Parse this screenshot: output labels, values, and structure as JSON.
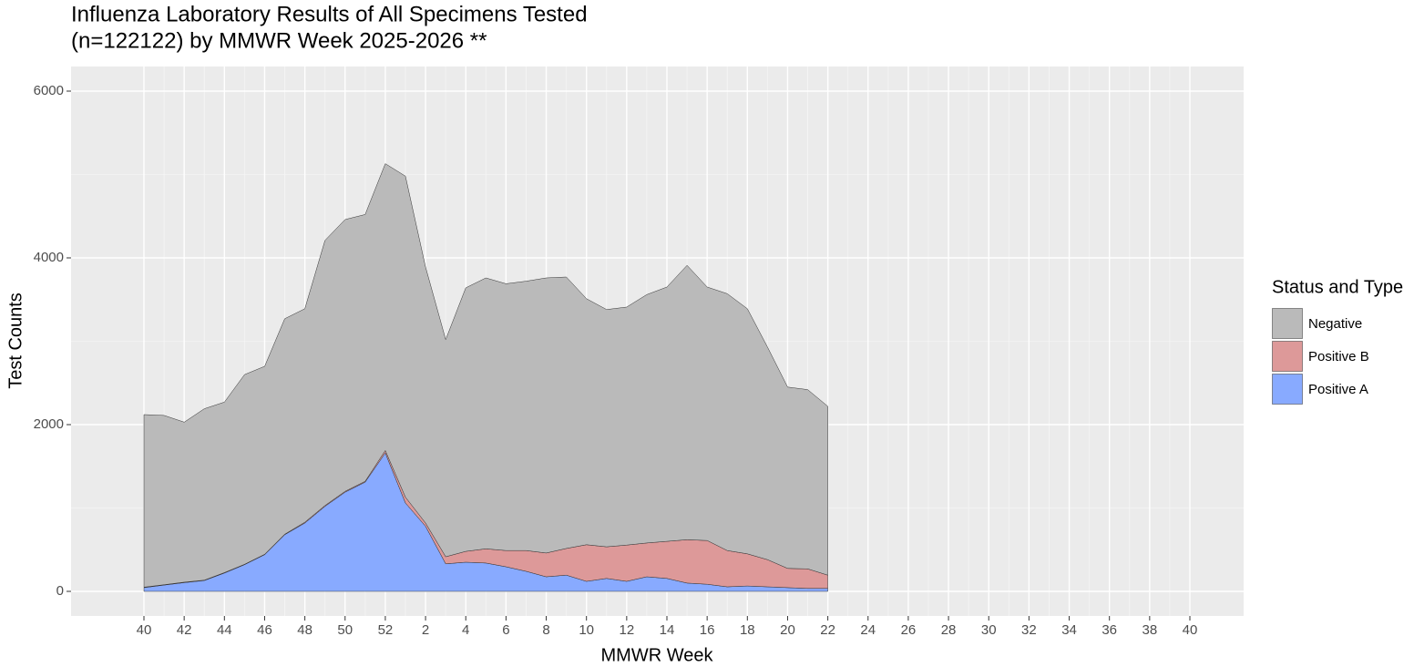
{
  "chart_data": {
    "type": "stacked-area",
    "title": [
      "Influenza Laboratory Results of All Specimens Tested",
      "(n=122122) by MMWR Week 2025-2026 **"
    ],
    "x_label": "MMWR Week",
    "y_label": "Test Counts",
    "legend_title": "Status and Type",
    "categories": [
      "40",
      null,
      "42",
      null,
      "44",
      null,
      "46",
      null,
      "48",
      null,
      "50",
      null,
      "52",
      null,
      "2",
      null,
      "4",
      null,
      "6",
      null,
      "8",
      null,
      "10",
      null,
      "12",
      null,
      "14",
      null,
      "16",
      null,
      "18",
      null,
      "20",
      null,
      "22",
      null,
      "24",
      null,
      "26",
      null,
      "28",
      null,
      "30",
      null,
      "32",
      null,
      "34",
      null,
      "36",
      null,
      "38",
      null,
      "40"
    ],
    "series": [
      {
        "name": "Positive A",
        "color": "#88aaff",
        "values": [
          45,
          75,
          105,
          130,
          220,
          320,
          440,
          680,
          820,
          1020,
          1190,
          1310,
          1660,
          1060,
          780,
          330,
          350,
          340,
          295,
          240,
          175,
          195,
          120,
          155,
          120,
          175,
          155,
          100,
          85,
          55,
          65,
          55,
          45,
          35,
          35,
          null,
          null,
          null,
          null,
          null,
          null,
          null,
          null,
          null,
          null,
          null,
          null,
          null,
          null,
          null,
          null,
          null,
          null
        ]
      },
      {
        "name": "Positive B",
        "color": "#dd9999",
        "values": [
          5,
          5,
          5,
          5,
          5,
          5,
          5,
          5,
          10,
          10,
          10,
          10,
          30,
          70,
          40,
          85,
          130,
          170,
          195,
          250,
          285,
          320,
          440,
          380,
          435,
          405,
          445,
          520,
          525,
          435,
          385,
          325,
          230,
          235,
          160,
          null,
          null,
          null,
          null,
          null,
          null,
          null,
          null,
          null,
          null,
          null,
          null,
          null,
          null,
          null,
          null,
          null,
          null
        ]
      },
      {
        "name": "Negative",
        "color": "#bababa",
        "values": [
          2070,
          2030,
          1920,
          2055,
          2045,
          2275,
          2255,
          2585,
          2560,
          3180,
          3260,
          3200,
          3440,
          3850,
          3070,
          2605,
          3160,
          3250,
          3200,
          3230,
          3300,
          3255,
          2950,
          2845,
          2855,
          2980,
          3050,
          3290,
          3040,
          3080,
          2940,
          2550,
          2175,
          2150,
          2025,
          null,
          null,
          null,
          null,
          null,
          null,
          null,
          null,
          null,
          null,
          null,
          null,
          null,
          null,
          null,
          null,
          null,
          null
        ]
      }
    ],
    "ylim": [
      -295,
      6295
    ],
    "yticks": [
      0,
      2000,
      4000,
      6000
    ],
    "grid": true,
    "legend": "right"
  }
}
